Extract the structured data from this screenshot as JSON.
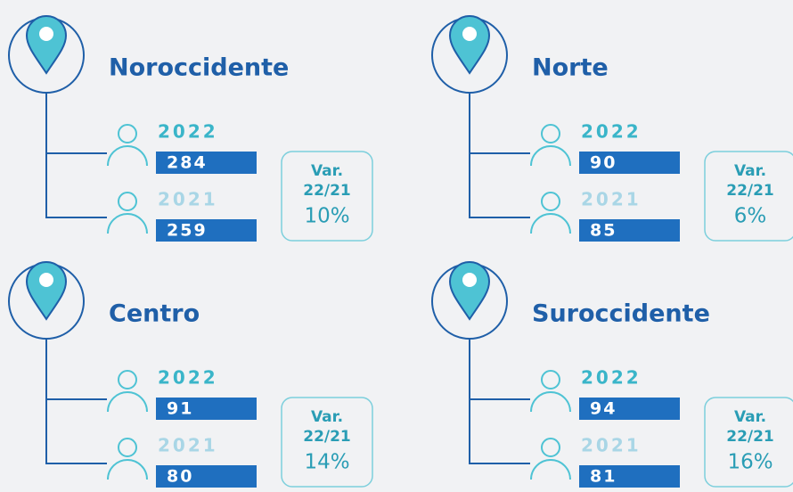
{
  "regions": [
    {
      "name": "Noroccidente",
      "years": [
        {
          "year": "2022",
          "value": "284"
        },
        {
          "year": "2021",
          "value": "259"
        }
      ],
      "var_label": "Var.",
      "var_period": "22/21",
      "var_pct": "10%"
    },
    {
      "name": "Norte",
      "years": [
        {
          "year": "2022",
          "value": "90"
        },
        {
          "year": "2021",
          "value": "85"
        }
      ],
      "var_label": "Var.",
      "var_period": "22/21",
      "var_pct": "6%"
    },
    {
      "name": "Centro",
      "years": [
        {
          "year": "2022",
          "value": "91"
        },
        {
          "year": "2021",
          "value": "80"
        }
      ],
      "var_label": "Var.",
      "var_period": "22/21",
      "var_pct": "14%"
    },
    {
      "name": "Suroccidente",
      "years": [
        {
          "year": "2022",
          "value": "94"
        },
        {
          "year": "2021",
          "value": "81"
        }
      ],
      "var_label": "Var.",
      "var_period": "22/21",
      "var_pct": "16%"
    }
  ]
}
